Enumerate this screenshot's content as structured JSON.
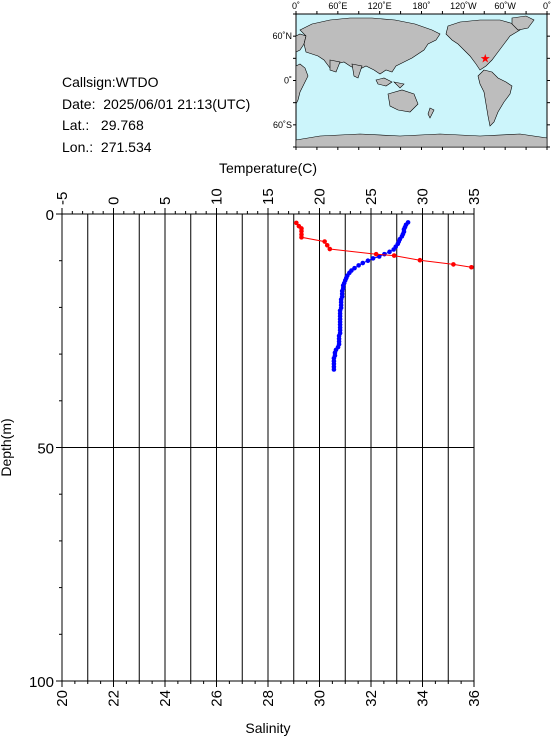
{
  "info": {
    "callsign": "Callsign:WTDO",
    "date": "Date:  2025/06/01 21:13(UTC)",
    "lat": "Lat.:   29.768",
    "lon": "Lon.:  271.534"
  },
  "map": {
    "top_labels": [
      "0˚",
      "60˚E",
      "120˚E",
      "180˚",
      "120˚W",
      "60˚W",
      "0˚"
    ],
    "left_labels": [
      "60˚N",
      "0˚",
      "60˚S"
    ],
    "ocean_color": "#ccf5fb",
    "land_color": "#bdbdbd",
    "marker_color": "#ff0000",
    "marker": {
      "lon": 271.534,
      "lat": 29.768
    }
  },
  "chart_data": {
    "type": "scatter",
    "temperature_axis": {
      "label": "Temperature(C)",
      "range": [
        -5,
        35
      ],
      "ticks": [
        "-5",
        "0",
        "5",
        "10",
        "15",
        "20",
        "25",
        "30",
        "35"
      ]
    },
    "salinity_axis": {
      "label": "Salinity",
      "range": [
        20,
        36
      ],
      "ticks": [
        "20",
        "22",
        "24",
        "26",
        "28",
        "30",
        "32",
        "34",
        "36"
      ]
    },
    "depth_axis": {
      "label": "Depth(m)",
      "range": [
        0,
        100
      ],
      "ticks": [
        "0",
        "50",
        "100"
      ]
    },
    "grid": true,
    "series": [
      {
        "quantity": "temperature",
        "color": "#0000ff",
        "points": [
          {
            "x": 28.6,
            "depth": 1.8
          },
          {
            "x": 28.4,
            "depth": 2.3
          },
          {
            "x": 28.3,
            "depth": 2.8
          },
          {
            "x": 28.2,
            "depth": 3.3
          },
          {
            "x": 28.2,
            "depth": 3.8
          },
          {
            "x": 28.1,
            "depth": 4.3
          },
          {
            "x": 28.0,
            "depth": 4.8
          },
          {
            "x": 27.8,
            "depth": 5.4
          },
          {
            "x": 27.7,
            "depth": 5.9
          },
          {
            "x": 27.6,
            "depth": 6.4
          },
          {
            "x": 27.4,
            "depth": 7.0
          },
          {
            "x": 27.2,
            "depth": 7.6
          },
          {
            "x": 26.8,
            "depth": 8.1
          },
          {
            "x": 26.3,
            "depth": 8.6
          },
          {
            "x": 25.8,
            "depth": 9.1
          },
          {
            "x": 25.2,
            "depth": 9.5
          },
          {
            "x": 24.7,
            "depth": 10.0
          },
          {
            "x": 24.2,
            "depth": 10.5
          },
          {
            "x": 23.8,
            "depth": 11.0
          },
          {
            "x": 23.4,
            "depth": 11.6
          },
          {
            "x": 23.1,
            "depth": 12.1
          },
          {
            "x": 22.9,
            "depth": 12.6
          },
          {
            "x": 22.7,
            "depth": 13.2
          },
          {
            "x": 22.6,
            "depth": 13.7
          },
          {
            "x": 22.5,
            "depth": 14.2
          },
          {
            "x": 22.4,
            "depth": 14.8
          },
          {
            "x": 22.3,
            "depth": 15.3
          },
          {
            "x": 22.3,
            "depth": 15.9
          },
          {
            "x": 22.2,
            "depth": 16.5
          },
          {
            "x": 22.2,
            "depth": 17.1
          },
          {
            "x": 22.2,
            "depth": 17.7
          },
          {
            "x": 22.1,
            "depth": 18.3
          },
          {
            "x": 22.1,
            "depth": 18.9
          },
          {
            "x": 22.1,
            "depth": 19.5
          },
          {
            "x": 22.1,
            "depth": 20.1
          },
          {
            "x": 22.0,
            "depth": 20.7
          },
          {
            "x": 22.0,
            "depth": 21.3
          },
          {
            "x": 22.0,
            "depth": 21.9
          },
          {
            "x": 22.0,
            "depth": 22.5
          },
          {
            "x": 22.0,
            "depth": 23.1
          },
          {
            "x": 22.0,
            "depth": 23.7
          },
          {
            "x": 22.0,
            "depth": 24.3
          },
          {
            "x": 22.0,
            "depth": 24.9
          },
          {
            "x": 22.0,
            "depth": 25.5
          },
          {
            "x": 21.9,
            "depth": 26.1
          },
          {
            "x": 21.9,
            "depth": 26.7
          },
          {
            "x": 21.9,
            "depth": 27.3
          },
          {
            "x": 21.9,
            "depth": 27.9
          },
          {
            "x": 21.8,
            "depth": 28.5
          },
          {
            "x": 21.6,
            "depth": 29.1
          },
          {
            "x": 21.5,
            "depth": 29.7
          },
          {
            "x": 21.5,
            "depth": 30.3
          },
          {
            "x": 21.4,
            "depth": 30.9
          },
          {
            "x": 21.4,
            "depth": 31.5
          },
          {
            "x": 21.4,
            "depth": 32.1
          },
          {
            "x": 21.4,
            "depth": 32.7
          },
          {
            "x": 21.4,
            "depth": 33.3
          }
        ]
      },
      {
        "quantity": "salinity",
        "color": "#ff0000",
        "points": [
          {
            "x": 29.1,
            "depth": 1.9
          },
          {
            "x": 29.2,
            "depth": 2.6
          },
          {
            "x": 29.3,
            "depth": 3.1
          },
          {
            "x": 29.3,
            "depth": 3.7
          },
          {
            "x": 29.3,
            "depth": 4.4
          },
          {
            "x": 29.3,
            "depth": 5.0
          },
          {
            "x": 30.2,
            "depth": 5.9
          },
          {
            "x": 30.3,
            "depth": 6.7
          },
          {
            "x": 30.4,
            "depth": 7.5
          },
          {
            "x": 32.2,
            "depth": 8.6
          },
          {
            "x": 32.9,
            "depth": 8.9
          },
          {
            "x": 33.9,
            "depth": 9.9
          },
          {
            "x": 35.2,
            "depth": 10.8
          },
          {
            "x": 35.9,
            "depth": 11.4
          }
        ]
      }
    ]
  }
}
